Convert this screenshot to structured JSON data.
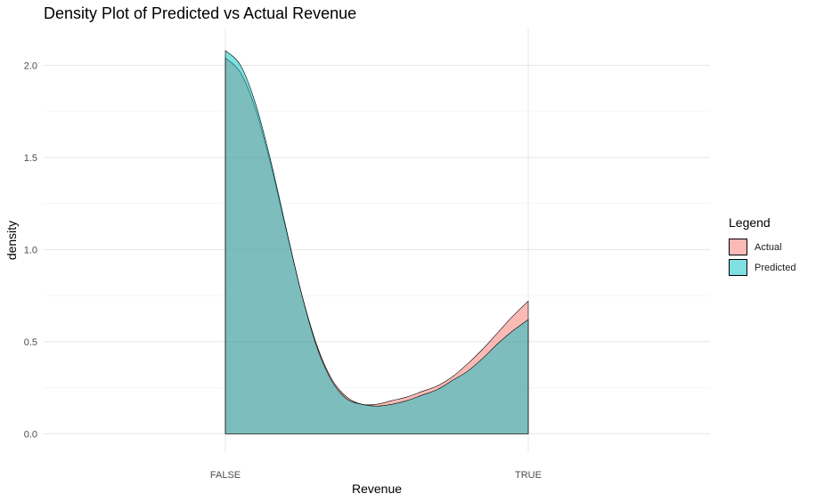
{
  "title": "Density Plot of Predicted vs Actual Revenue",
  "legend": {
    "title": "Legend",
    "items": [
      {
        "label": "Actual",
        "color": "#F8766D"
      },
      {
        "label": "Predicted",
        "color": "#00BFC4"
      }
    ]
  },
  "chart_data": {
    "type": "area",
    "title": "Density Plot of Predicted vs Actual Revenue",
    "xlabel": "Revenue",
    "ylabel": "density",
    "categories": [
      "FALSE",
      "TRUE"
    ],
    "x_range": [
      -0.6,
      1.6
    ],
    "ylim": [
      -0.1,
      2.2
    ],
    "yticks": [
      0.0,
      0.5,
      1.0,
      1.5,
      2.0
    ],
    "ytick_labels": [
      "0.0",
      "0.5",
      "1.0",
      "1.5",
      "2.0"
    ],
    "grid": true,
    "legend_position": "right",
    "fill_opacity": 0.5,
    "series": [
      {
        "name": "Actual",
        "color": "#F8766D",
        "x": [
          0,
          0.05,
          0.1,
          0.15,
          0.2,
          0.25,
          0.3,
          0.35,
          0.4,
          0.45,
          0.5,
          0.55,
          0.6,
          0.65,
          0.7,
          0.75,
          0.8,
          0.85,
          0.9,
          0.95,
          1.0
        ],
        "values": [
          2.04,
          1.96,
          1.76,
          1.46,
          1.11,
          0.77,
          0.49,
          0.3,
          0.2,
          0.16,
          0.16,
          0.18,
          0.2,
          0.23,
          0.26,
          0.31,
          0.38,
          0.46,
          0.55,
          0.64,
          0.72
        ]
      },
      {
        "name": "Predicted",
        "color": "#00BFC4",
        "x": [
          0,
          0.05,
          0.1,
          0.15,
          0.2,
          0.25,
          0.3,
          0.35,
          0.4,
          0.45,
          0.5,
          0.55,
          0.6,
          0.65,
          0.7,
          0.75,
          0.8,
          0.85,
          0.9,
          0.95,
          1.0
        ],
        "values": [
          2.08,
          2.0,
          1.79,
          1.48,
          1.12,
          0.77,
          0.48,
          0.29,
          0.19,
          0.16,
          0.15,
          0.16,
          0.18,
          0.21,
          0.24,
          0.29,
          0.34,
          0.41,
          0.49,
          0.56,
          0.62
        ]
      }
    ]
  }
}
